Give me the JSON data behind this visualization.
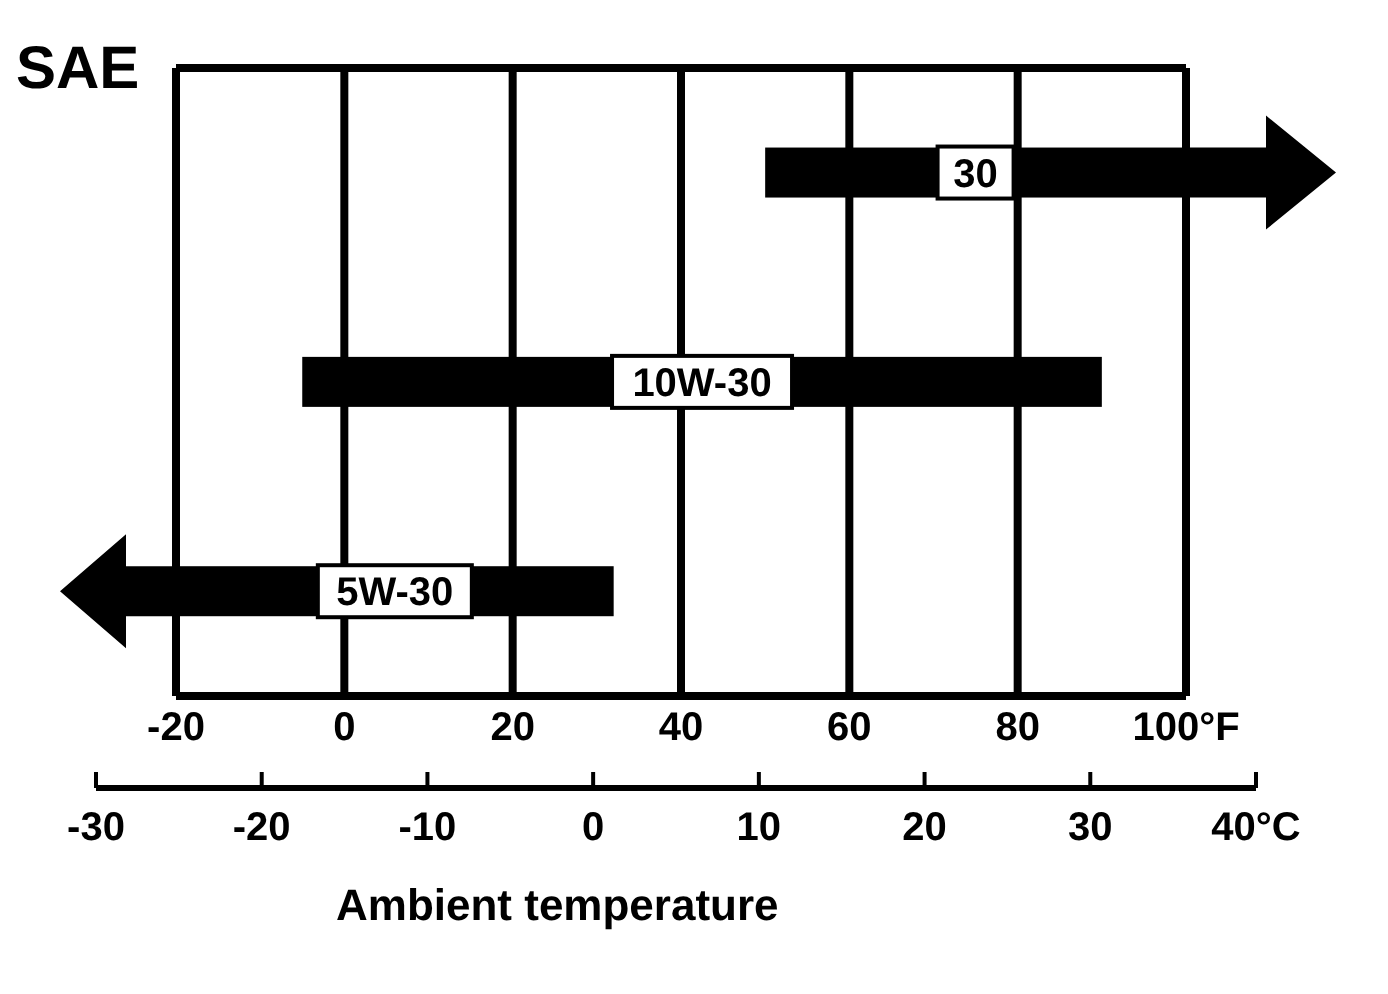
{
  "chart_data": {
    "type": "bar",
    "orientation": "horizontal",
    "title": "SAE",
    "xlabel": "Ambient temperature",
    "categories": [
      "30",
      "10W-30",
      "5W-30"
    ],
    "base": [
      50,
      -5,
      -20
    ],
    "values": [
      50,
      95,
      52
    ],
    "color": "#000000",
    "xlim": [
      -20,
      100
    ],
    "xticks": [
      -20,
      0,
      20,
      40,
      60,
      80,
      {
        "value": 100,
        "label": "100°F"
      }
    ],
    "x2lim": [
      -30,
      40
    ],
    "x2ticks": [
      -30,
      -20,
      -10,
      0,
      10,
      20,
      30,
      {
        "value": 40,
        "label": "40°C"
      }
    ],
    "grid": "x",
    "tick_labels": "x"
  }
}
